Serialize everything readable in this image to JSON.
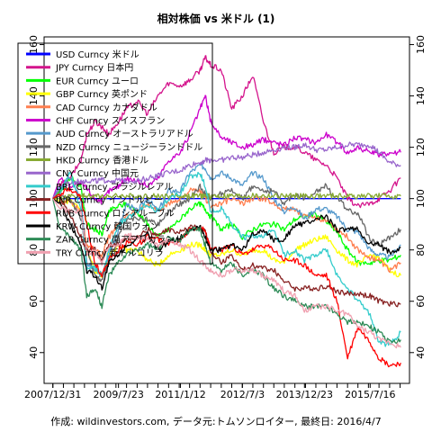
{
  "chart_data": {
    "type": "line",
    "title": "相対株価 vs 米ドル (1)",
    "caption": "作成: wildinvestors.com, データ元:トムソンロイター, 最終日: 2016/4/7",
    "x_tick_labels": [
      "2007/12/31",
      "2009/7/23",
      "2011/1/12",
      "2012/7/3",
      "2013/12/23",
      "2015/7/16"
    ],
    "x_range": [
      "2007-12-31",
      "2016-04-07"
    ],
    "y_ticks": [
      40,
      60,
      80,
      100,
      120,
      140,
      160
    ],
    "ylim": [
      28,
      163
    ],
    "grid": false,
    "legend_position": "top-left",
    "x_dates": [
      "2007-12-31",
      "2008-03-01",
      "2008-06-01",
      "2008-09-01",
      "2008-10-20",
      "2009-01-01",
      "2009-03-01",
      "2009-05-01",
      "2009-07-23",
      "2009-10-01",
      "2010-01-01",
      "2010-04-01",
      "2010-07-01",
      "2010-10-01",
      "2011-01-12",
      "2011-04-01",
      "2011-07-01",
      "2011-08-15",
      "2011-10-01",
      "2012-01-01",
      "2012-04-01",
      "2012-07-03",
      "2012-10-01",
      "2013-01-01",
      "2013-04-01",
      "2013-07-01",
      "2013-10-01",
      "2013-12-23",
      "2014-04-01",
      "2014-07-01",
      "2014-10-01",
      "2015-01-01",
      "2015-04-01",
      "2015-07-16",
      "2015-10-01",
      "2016-01-01",
      "2016-04-07"
    ],
    "series": [
      {
        "name": "USD Curncy 米ドル",
        "color": "#0000ff",
        "values": [
          100,
          100,
          100,
          100,
          100,
          100,
          100,
          100,
          100,
          100,
          100,
          100,
          100,
          100,
          100,
          100,
          100,
          100,
          100,
          100,
          100,
          100,
          100,
          100,
          100,
          100,
          100,
          100,
          100,
          100,
          100,
          100,
          100,
          100,
          100,
          100,
          100
        ]
      },
      {
        "name": "JPY Curncy 日本円",
        "color": "#d4148c",
        "values": [
          100,
          105,
          108,
          115,
          125,
          130,
          128,
          125,
          130,
          135,
          138,
          133,
          140,
          145,
          144,
          146,
          150,
          155,
          152,
          150,
          135,
          140,
          148,
          130,
          118,
          120,
          120,
          118,
          115,
          113,
          108,
          100,
          97,
          98,
          100,
          103,
          108
        ]
      },
      {
        "name": "EUR Curncy ユーロ",
        "color": "#00ff00",
        "values": [
          100,
          103,
          108,
          105,
          90,
          88,
          86,
          95,
          97,
          98,
          95,
          90,
          85,
          88,
          92,
          96,
          98,
          96,
          93,
          88,
          90,
          85,
          88,
          90,
          90,
          88,
          92,
          93,
          94,
          91,
          87,
          80,
          75,
          75,
          76,
          76,
          78
        ]
      },
      {
        "name": "GBP Curncy 英ポンド",
        "color": "#ffff00",
        "values": [
          100,
          99,
          99,
          95,
          80,
          72,
          70,
          78,
          82,
          80,
          80,
          76,
          74,
          78,
          80,
          82,
          82,
          80,
          78,
          78,
          80,
          78,
          80,
          80,
          76,
          75,
          80,
          82,
          84,
          85,
          80,
          76,
          74,
          78,
          77,
          72,
          70
        ]
      },
      {
        "name": "CAD Curncy カナダドル",
        "color": "#ff7f50",
        "values": [
          100,
          98,
          99,
          95,
          82,
          80,
          78,
          85,
          90,
          94,
          95,
          98,
          95,
          98,
          100,
          103,
          103,
          100,
          97,
          98,
          100,
          98,
          100,
          100,
          98,
          96,
          96,
          93,
          92,
          92,
          88,
          85,
          80,
          77,
          76,
          72,
          75
        ]
      },
      {
        "name": "CHF Curncy スイスフラン",
        "color": "#cc00cc",
        "values": [
          100,
          108,
          105,
          106,
          104,
          100,
          99,
          103,
          105,
          108,
          107,
          105,
          108,
          115,
          118,
          125,
          135,
          140,
          130,
          124,
          122,
          120,
          121,
          123,
          122,
          121,
          124,
          123,
          122,
          125,
          122,
          118,
          120,
          118,
          117,
          118,
          118
        ]
      },
      {
        "name": "AUD Curncy オーストラリアドル",
        "color": "#5599cc",
        "values": [
          100,
          105,
          108,
          100,
          75,
          72,
          70,
          78,
          88,
          98,
          95,
          100,
          95,
          103,
          103,
          110,
          113,
          112,
          108,
          110,
          108,
          105,
          110,
          108,
          100,
          95,
          97,
          92,
          96,
          96,
          93,
          88,
          87,
          80,
          78,
          77,
          82
        ]
      },
      {
        "name": "NZD Curncy ニュージーランドドル",
        "color": "#666666",
        "values": [
          100,
          102,
          100,
          92,
          80,
          70,
          68,
          75,
          85,
          92,
          92,
          92,
          90,
          95,
          98,
          100,
          105,
          102,
          100,
          102,
          103,
          100,
          105,
          103,
          103,
          98,
          102,
          100,
          103,
          105,
          100,
          96,
          94,
          84,
          82,
          85,
          88
        ]
      },
      {
        "name": "HKD Curncy 香港ドル",
        "color": "#88aa33",
        "values": [
          100,
          100,
          101,
          101,
          101,
          101,
          101,
          101,
          101,
          101,
          101,
          101,
          101,
          101,
          101,
          101,
          101,
          101,
          101,
          101,
          101,
          101,
          101,
          101,
          101,
          101,
          101,
          101,
          101,
          101,
          101,
          101,
          101,
          101,
          101,
          101,
          101
        ]
      },
      {
        "name": "CNY Curncy 中国元",
        "color": "#9966cc",
        "values": [
          100,
          104,
          106,
          107,
          107,
          107,
          107,
          107,
          107,
          107,
          107,
          108,
          109,
          110,
          111,
          113,
          114,
          115,
          115,
          115,
          116,
          116,
          117,
          118,
          119,
          120,
          120,
          121,
          119,
          119,
          120,
          121,
          121,
          121,
          118,
          114,
          113
        ]
      },
      {
        "name": "BRL Curncy ブラジルレアル",
        "color": "#33cccc",
        "values": [
          100,
          102,
          110,
          95,
          72,
          73,
          70,
          80,
          90,
          92,
          95,
          98,
          95,
          100,
          102,
          108,
          110,
          105,
          95,
          96,
          90,
          85,
          85,
          85,
          88,
          78,
          80,
          76,
          78,
          80,
          70,
          65,
          60,
          55,
          44,
          43,
          48
        ]
      },
      {
        "name": "INR Curncy インドルピー",
        "color": "#882222",
        "values": [
          100,
          101,
          93,
          85,
          80,
          80,
          76,
          82,
          82,
          84,
          85,
          88,
          85,
          88,
          87,
          89,
          89,
          87,
          80,
          75,
          78,
          72,
          74,
          73,
          72,
          68,
          65,
          65,
          65,
          66,
          64,
          63,
          63,
          62,
          60,
          59,
          59
        ]
      },
      {
        "name": "RUB Curncy ロシアルーブル",
        "color": "#ff0000",
        "values": [
          100,
          102,
          104,
          100,
          90,
          75,
          70,
          76,
          80,
          83,
          82,
          85,
          84,
          82,
          84,
          88,
          89,
          87,
          80,
          80,
          82,
          78,
          80,
          82,
          80,
          76,
          76,
          74,
          70,
          70,
          60,
          38,
          50,
          44,
          38,
          35,
          36
        ]
      },
      {
        "name": "KRW Curncy 韓国ウォン",
        "color": "#000000",
        "values": [
          100,
          98,
          90,
          82,
          72,
          70,
          65,
          75,
          78,
          82,
          84,
          86,
          80,
          83,
          85,
          88,
          89,
          85,
          80,
          80,
          82,
          80,
          86,
          88,
          84,
          84,
          90,
          90,
          92,
          93,
          88,
          88,
          88,
          82,
          82,
          79,
          81
        ]
      },
      {
        "name": "ZAR Curncy 南アフリカランド",
        "color": "#2e8b57",
        "values": [
          100,
          88,
          85,
          80,
          62,
          65,
          58,
          70,
          75,
          78,
          80,
          82,
          80,
          85,
          84,
          88,
          88,
          82,
          75,
          72,
          75,
          70,
          72,
          70,
          65,
          62,
          60,
          58,
          58,
          58,
          55,
          52,
          52,
          50,
          48,
          44,
          45
        ]
      },
      {
        "name": "TRY Curncy 新トルコリラ",
        "color": "#f0a0b0",
        "values": [
          100,
          96,
          95,
          95,
          78,
          80,
          75,
          82,
          82,
          86,
          85,
          84,
          82,
          84,
          82,
          80,
          76,
          74,
          72,
          70,
          72,
          72,
          72,
          70,
          68,
          64,
          62,
          56,
          58,
          58,
          56,
          55,
          50,
          48,
          45,
          44,
          42
        ]
      }
    ]
  }
}
